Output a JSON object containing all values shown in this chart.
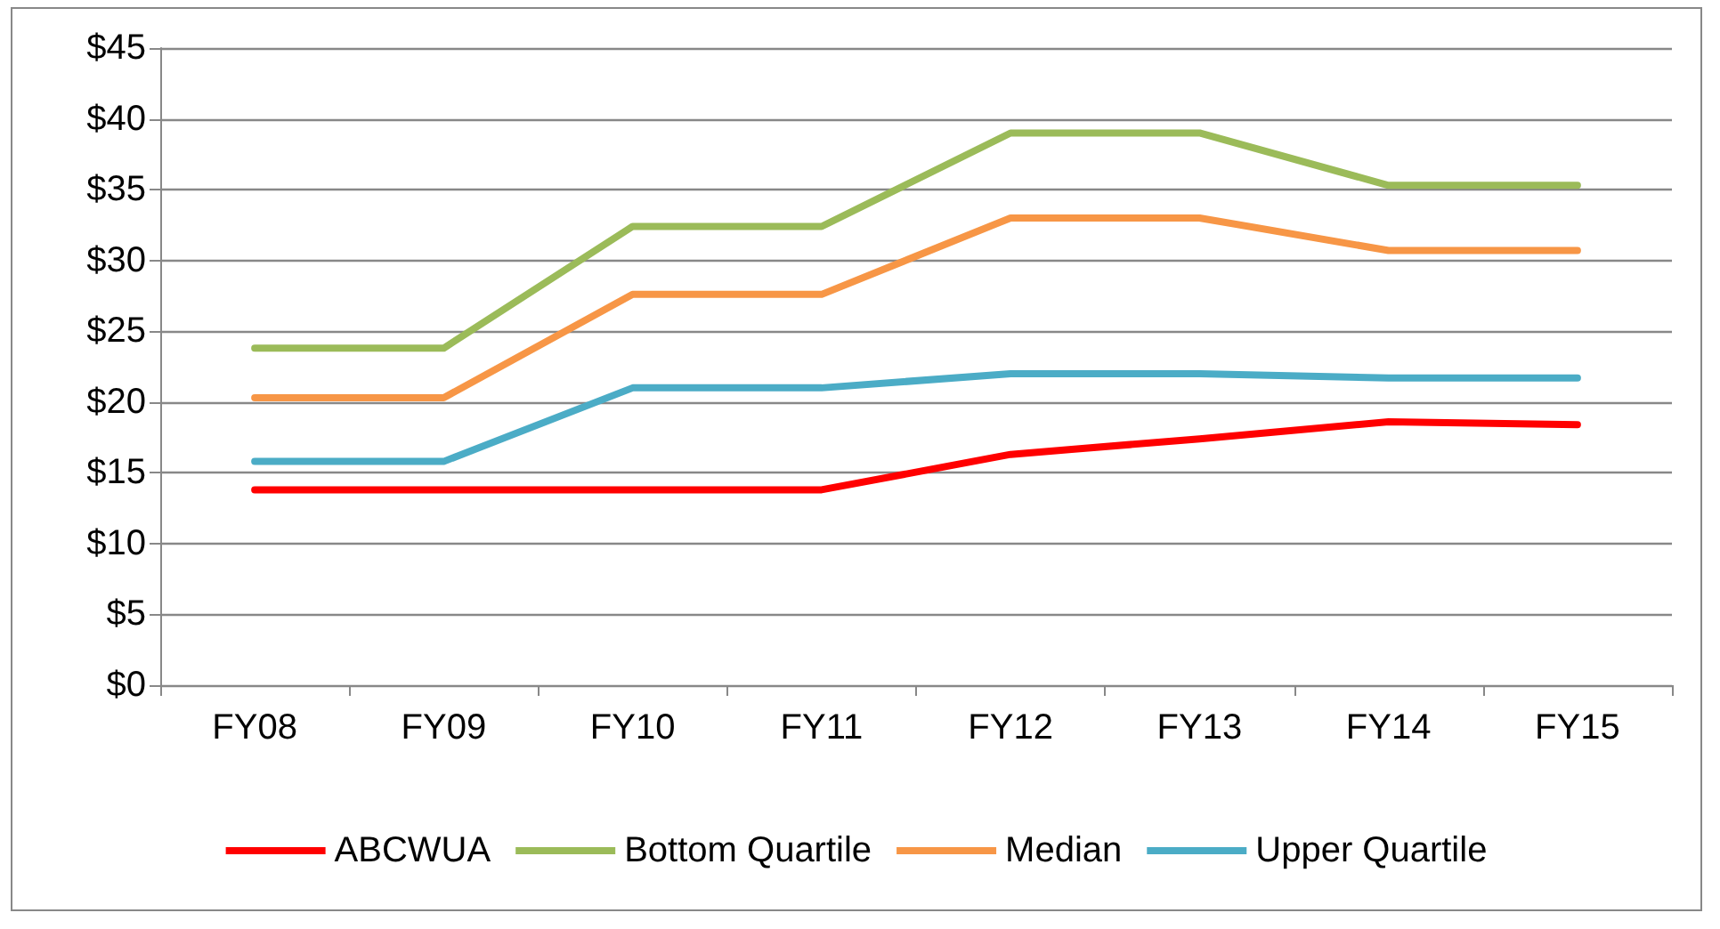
{
  "chart_data": {
    "type": "line",
    "categories": [
      "FY08",
      "FY09",
      "FY10",
      "FY11",
      "FY12",
      "FY13",
      "FY14",
      "FY15"
    ],
    "series": [
      {
        "name": "ABCWUA",
        "color": "#ff0000",
        "values": [
          13.8,
          13.8,
          13.8,
          13.8,
          16.3,
          17.4,
          18.6,
          18.4
        ]
      },
      {
        "name": "Bottom Quartile",
        "color": "#9bbb59",
        "values": [
          23.8,
          23.8,
          32.4,
          32.4,
          39.0,
          39.0,
          35.3,
          35.3
        ]
      },
      {
        "name": "Median",
        "color": "#f79646",
        "values": [
          20.3,
          20.3,
          27.6,
          27.6,
          33.0,
          33.0,
          30.7,
          30.7
        ]
      },
      {
        "name": "Upper Quartile",
        "color": "#4bacc6",
        "values": [
          15.8,
          15.8,
          21.0,
          21.0,
          22.0,
          22.0,
          21.7,
          21.7
        ]
      }
    ],
    "ylim": [
      0,
      45
    ],
    "yticks": [
      {
        "value": 0,
        "label": "$0"
      },
      {
        "value": 5,
        "label": "$5"
      },
      {
        "value": 10,
        "label": "$10"
      },
      {
        "value": 15,
        "label": "$15"
      },
      {
        "value": 20,
        "label": "$20"
      },
      {
        "value": 25,
        "label": "$25"
      },
      {
        "value": 30,
        "label": "$30"
      },
      {
        "value": 35,
        "label": "$35"
      },
      {
        "value": 40,
        "label": "$40"
      },
      {
        "value": 45,
        "label": "$45"
      }
    ],
    "grid": "y",
    "legend": "bottom",
    "marker": "none",
    "line_style": "solid"
  }
}
